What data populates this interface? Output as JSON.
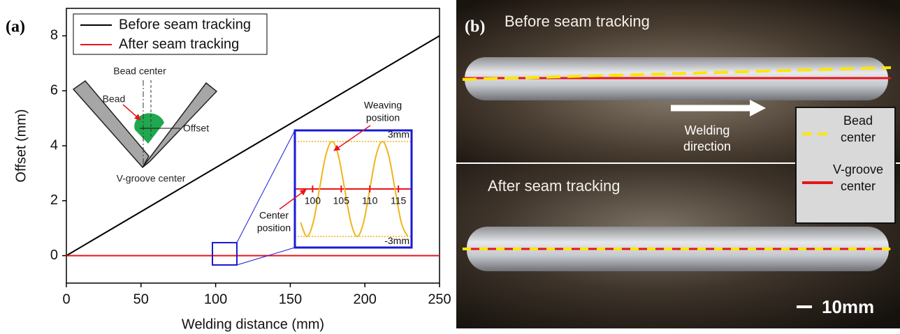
{
  "panel_labels": [
    "(a)",
    "(b)"
  ],
  "chart_data": [
    {
      "type": "line",
      "xlabel": "Welding distance (mm)",
      "ylabel": "Offset (mm)",
      "x": [
        0,
        250
      ],
      "xlim": [
        0,
        250
      ],
      "ylim": [
        -1,
        9
      ],
      "xticks": [
        0,
        50,
        100,
        150,
        200,
        250
      ],
      "yticks": [
        0,
        2,
        4,
        6,
        8
      ],
      "legend": "upper left",
      "series": [
        {
          "name": "Before seam tracking",
          "color": "#000000",
          "values": [
            0,
            8
          ]
        },
        {
          "name": "After seam tracking",
          "color": "#e8141b",
          "values": [
            0,
            0
          ]
        }
      ]
    },
    {
      "type": "line",
      "x": [
        97.9,
        99.0,
        100.1,
        101.2,
        102.3,
        103.4,
        104.5,
        105.6,
        106.7,
        107.8,
        108.9,
        110.0,
        111.1,
        112.2,
        113.3,
        114.4,
        115.5,
        116.6
      ],
      "xlim": [
        96.9,
        117.3
      ],
      "ylim": [
        -3.7,
        3.7
      ],
      "xticks": [
        100,
        105,
        110,
        115
      ],
      "series": [
        {
          "color": "#f0b41c",
          "values": [
            -2.12,
            -3,
            -2.12,
            0,
            2.12,
            3,
            2.12,
            0,
            -2.12,
            -3,
            -2.12,
            0,
            2.12,
            3,
            2.12,
            0,
            -2.12,
            -3
          ]
        }
      ],
      "hlines": [
        {
          "value": 3,
          "label": "3mm",
          "color": "#f0b41c"
        },
        {
          "value": -3,
          "label": "-3mm",
          "color": "#f0b41c"
        },
        {
          "value": 0,
          "color": "#e8141b"
        }
      ],
      "annotations": [
        [
          "Weaving",
          "position"
        ],
        [
          "Center",
          "position"
        ]
      ]
    }
  ],
  "schematic": {
    "bead_center": "Bead center",
    "bead": "Bead",
    "offset": "Offset",
    "groove_center": "V-groove center"
  },
  "photo": {
    "titles": [
      "Before seam tracking",
      "After seam tracking"
    ],
    "direction": [
      "Welding",
      "direction"
    ],
    "legend": [
      {
        "label": [
          "Bead",
          "center"
        ],
        "color": "#ffe600"
      },
      {
        "label": [
          "V-groove",
          "center"
        ],
        "color": "#e8141b"
      }
    ],
    "scale_bar": "10mm"
  }
}
